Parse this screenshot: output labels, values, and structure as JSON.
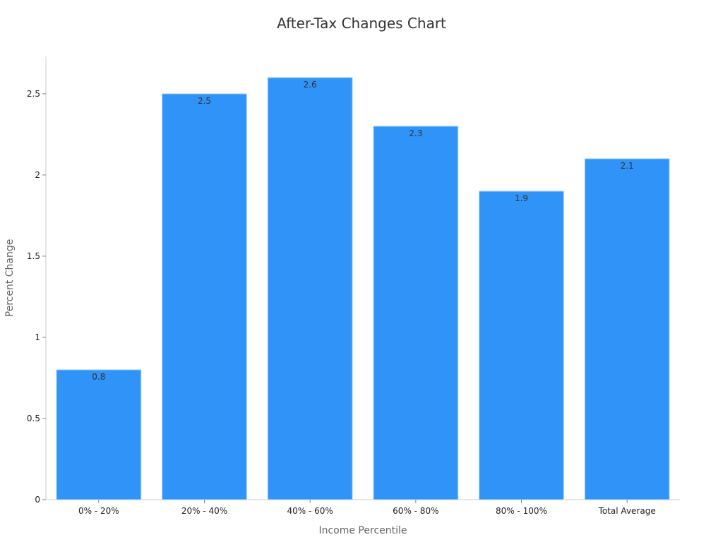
{
  "chart_data": {
    "type": "bar",
    "title": "After-Tax Changes Chart",
    "xlabel": "Income Percentile",
    "ylabel": "Percent Change",
    "categories": [
      "0% - 20%",
      "20% - 40%",
      "40% - 60%",
      "60% - 80%",
      "80% - 100%",
      "Total Average"
    ],
    "values": [
      0.8,
      2.5,
      2.6,
      2.3,
      1.9,
      2.1
    ],
    "value_labels": [
      "0.8",
      "2.5",
      "2.6",
      "2.3",
      "1.9",
      "2.1"
    ],
    "y_ticks": [
      0,
      0.5,
      1,
      1.5,
      2,
      2.5
    ],
    "y_tick_labels": [
      "0",
      "0.5",
      "1",
      "1.5",
      "2",
      "2.5"
    ],
    "ylim": [
      0,
      2.73
    ],
    "grid": false,
    "legend": "none",
    "colors": {
      "bar": "#2f93f8",
      "bar_edge": "#a8d0f7"
    }
  }
}
